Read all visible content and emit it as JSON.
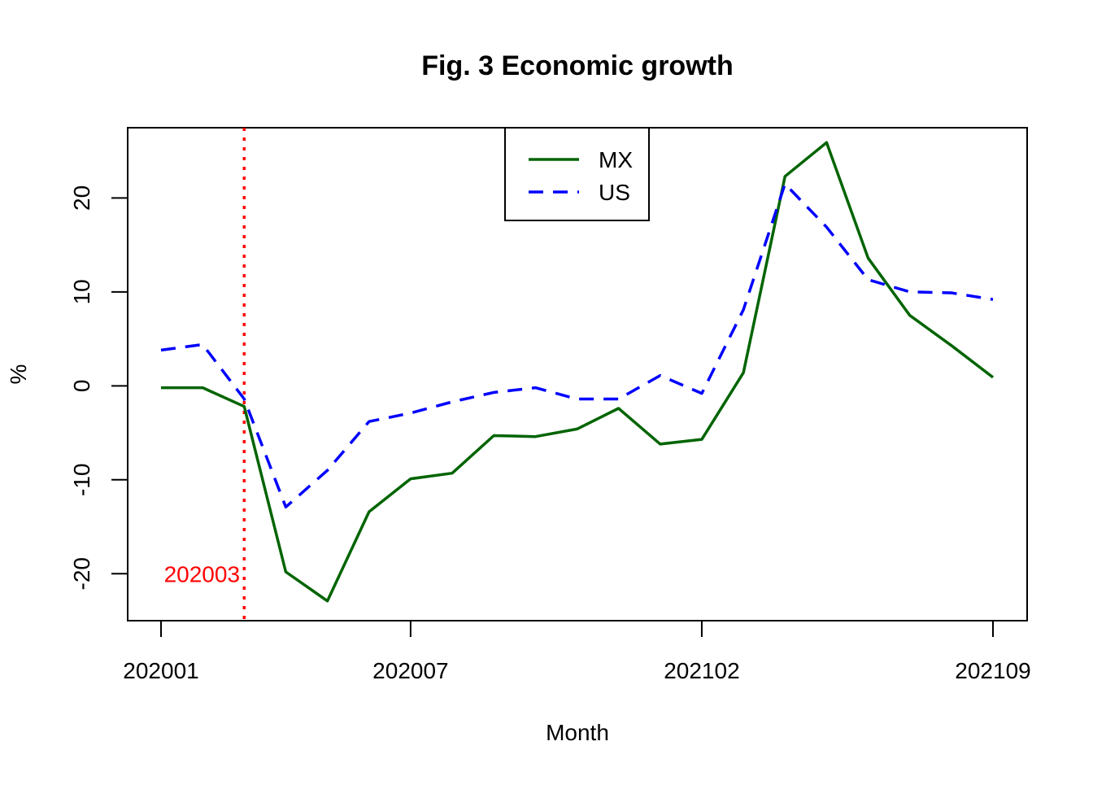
{
  "chart_data": {
    "type": "line",
    "title": "Fig. 3 Economic growth",
    "xlabel": "Month",
    "ylabel": "%",
    "x": [
      "202001",
      "202002",
      "202003",
      "202004",
      "202005",
      "202006",
      "202007",
      "202008",
      "202009",
      "202010",
      "202011",
      "202012",
      "202101",
      "202102",
      "202103",
      "202104",
      "202105",
      "202106",
      "202107",
      "202108",
      "202109"
    ],
    "x_ticks": [
      "202001",
      "202007",
      "202102",
      "202109"
    ],
    "y_ticks": [
      -20,
      -10,
      0,
      10,
      20
    ],
    "ylim": [
      -25,
      28
    ],
    "series": [
      {
        "name": "MX",
        "color": "#006400",
        "line_style": "solid",
        "values": [
          -0.2,
          -0.2,
          -2.2,
          -19.8,
          -22.9,
          -13.4,
          -9.9,
          -9.3,
          -5.3,
          -5.4,
          -4.6,
          -2.4,
          -6.2,
          -5.7,
          1.4,
          22.3,
          25.9,
          13.6,
          7.5,
          4.3,
          0.9
        ]
      },
      {
        "name": "US",
        "color": "#0000FF",
        "line_style": "dashed",
        "values": [
          3.8,
          4.4,
          -1.4,
          -12.9,
          -9.0,
          -3.8,
          -2.9,
          -1.7,
          -0.7,
          -0.2,
          -1.4,
          -1.4,
          1.1,
          -0.8,
          8.1,
          21.5,
          16.9,
          11.3,
          10.0,
          9.9,
          9.2
        ]
      }
    ],
    "annotations": [
      {
        "type": "vline",
        "x": "202003",
        "label": "202003",
        "color": "#FF0000",
        "line_style": "dotted"
      }
    ],
    "legend": {
      "position": "top-center",
      "entries": [
        "MX",
        "US"
      ]
    },
    "grid": false
  }
}
